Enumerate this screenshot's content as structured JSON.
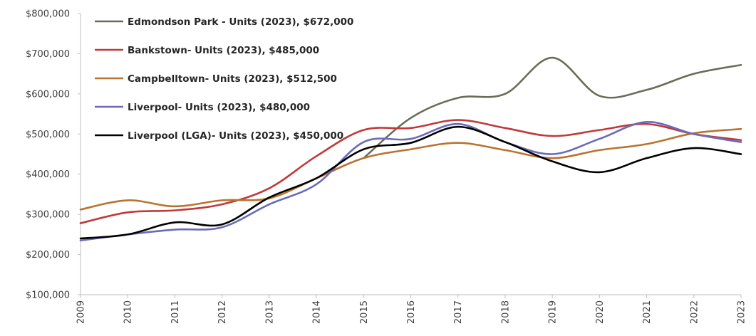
{
  "chart_data": {
    "type": "line",
    "title": "",
    "xlabel": "",
    "ylabel": "",
    "ylim": [
      100000,
      800000
    ],
    "yticks": [
      100000,
      200000,
      300000,
      400000,
      500000,
      600000,
      700000,
      800000
    ],
    "ytick_labels": [
      "$100,000",
      "$200,000",
      "$300,000",
      "$400,000",
      "$500,000",
      "$600,000",
      "$700,000",
      "$800,000"
    ],
    "x": [
      "2009",
      "2010",
      "2011",
      "2012",
      "2013",
      "2014",
      "2015",
      "2016",
      "2017",
      "2018",
      "2019",
      "2020",
      "2021",
      "2022",
      "2023"
    ],
    "grid": false,
    "legend_position": "top-left",
    "series": [
      {
        "name": "Edmondson Park - Units (2023), $672,000",
        "color": "#6b6b5a",
        "values": [
          null,
          null,
          null,
          null,
          null,
          null,
          440000,
          540000,
          590000,
          600000,
          690000,
          595000,
          610000,
          650000,
          672000
        ]
      },
      {
        "name": "Bankstown- Units (2023), $485,000",
        "color": "#c0393b",
        "values": [
          278000,
          305000,
          310000,
          325000,
          365000,
          445000,
          510000,
          515000,
          535000,
          515000,
          495000,
          510000,
          525000,
          500000,
          485000
        ]
      },
      {
        "name": "Campbelltown- Units (2023), $512,500",
        "color": "#b8732f",
        "values": [
          312000,
          335000,
          320000,
          335000,
          340000,
          390000,
          440000,
          462000,
          478000,
          460000,
          440000,
          460000,
          475000,
          502000,
          512500
        ]
      },
      {
        "name": "Liverpool- Units (2023), $480,000",
        "color": "#6a6ab8",
        "values": [
          235000,
          250000,
          262000,
          268000,
          325000,
          375000,
          480000,
          488000,
          525000,
          480000,
          450000,
          488000,
          530000,
          500000,
          480000
        ]
      },
      {
        "name": "Liverpool (LGA)- Units (2023), $450,000",
        "color": "#000000",
        "values": [
          240000,
          250000,
          280000,
          275000,
          342000,
          390000,
          462000,
          478000,
          518000,
          480000,
          432000,
          405000,
          440000,
          465000,
          450000
        ]
      }
    ]
  }
}
